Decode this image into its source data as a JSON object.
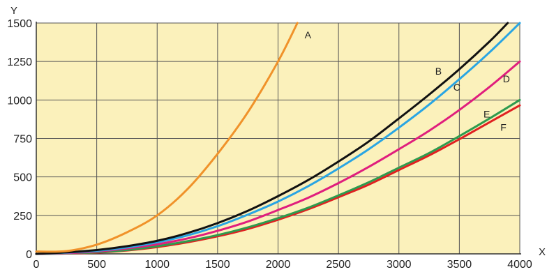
{
  "chart_data": {
    "type": "line",
    "xlabel": "X",
    "ylabel": "Y",
    "xlim": [
      0,
      4000
    ],
    "ylim": [
      0,
      1500
    ],
    "x_ticks": [
      "0",
      "500",
      "1000",
      "1500",
      "2000",
      "2500",
      "3000",
      "3500",
      "4000"
    ],
    "y_ticks": [
      "0",
      "250",
      "500",
      "750",
      "1000",
      "1250",
      "1500"
    ],
    "grid": true,
    "legend": "inline curve labels",
    "colors": {
      "plot_background": "#fbf1bb",
      "grid": "#555555",
      "axes": "#333333"
    },
    "series": [
      {
        "name": "A",
        "color": "#f0922a",
        "x": [
          0,
          250,
          500,
          750,
          1000,
          1250,
          1500,
          1750,
          2000,
          2160
        ],
        "y": [
          15,
          18,
          60,
          140,
          250,
          420,
          650,
          920,
          1250,
          1500
        ]
      },
      {
        "name": "B",
        "color": "#111111",
        "x": [
          0,
          250,
          500,
          750,
          1000,
          1250,
          1500,
          1750,
          2000,
          2250,
          2500,
          2750,
          3000,
          3250,
          3500,
          3750,
          3900
        ],
        "y": [
          0,
          10,
          25,
          50,
          85,
          135,
          200,
          280,
          375,
          480,
          600,
          730,
          880,
          1035,
          1200,
          1380,
          1500
        ]
      },
      {
        "name": "C",
        "color": "#29a5e3",
        "x": [
          0,
          250,
          500,
          750,
          1000,
          1250,
          1500,
          1750,
          2000,
          2250,
          2500,
          2750,
          3000,
          3250,
          3500,
          3750,
          4000
        ],
        "y": [
          0,
          8,
          20,
          42,
          75,
          120,
          180,
          255,
          340,
          440,
          555,
          680,
          820,
          970,
          1135,
          1310,
          1500
        ]
      },
      {
        "name": "D",
        "color": "#e01e7d",
        "x": [
          0,
          250,
          500,
          750,
          1000,
          1250,
          1500,
          1750,
          2000,
          2250,
          2500,
          2750,
          3000,
          3250,
          3500,
          3750,
          4000
        ],
        "y": [
          0,
          5,
          15,
          35,
          62,
          100,
          150,
          210,
          285,
          365,
          460,
          565,
          680,
          800,
          935,
          1085,
          1250
        ]
      },
      {
        "name": "E",
        "color": "#2e9b4e",
        "x": [
          0,
          250,
          500,
          750,
          1000,
          1250,
          1500,
          1750,
          2000,
          2250,
          2500,
          2750,
          3000,
          3250,
          3500,
          3750,
          4000
        ],
        "y": [
          0,
          3,
          10,
          25,
          50,
          82,
          122,
          172,
          232,
          300,
          380,
          465,
          560,
          655,
          765,
          880,
          1000
        ]
      },
      {
        "name": "F",
        "color": "#e02020",
        "x": [
          0,
          250,
          500,
          750,
          1000,
          1250,
          1500,
          1750,
          2000,
          2250,
          2500,
          2750,
          3000,
          3250,
          3500,
          3750,
          4000
        ],
        "y": [
          0,
          2,
          8,
          22,
          44,
          75,
          114,
          162,
          222,
          290,
          368,
          450,
          545,
          640,
          745,
          855,
          965
        ]
      }
    ]
  }
}
